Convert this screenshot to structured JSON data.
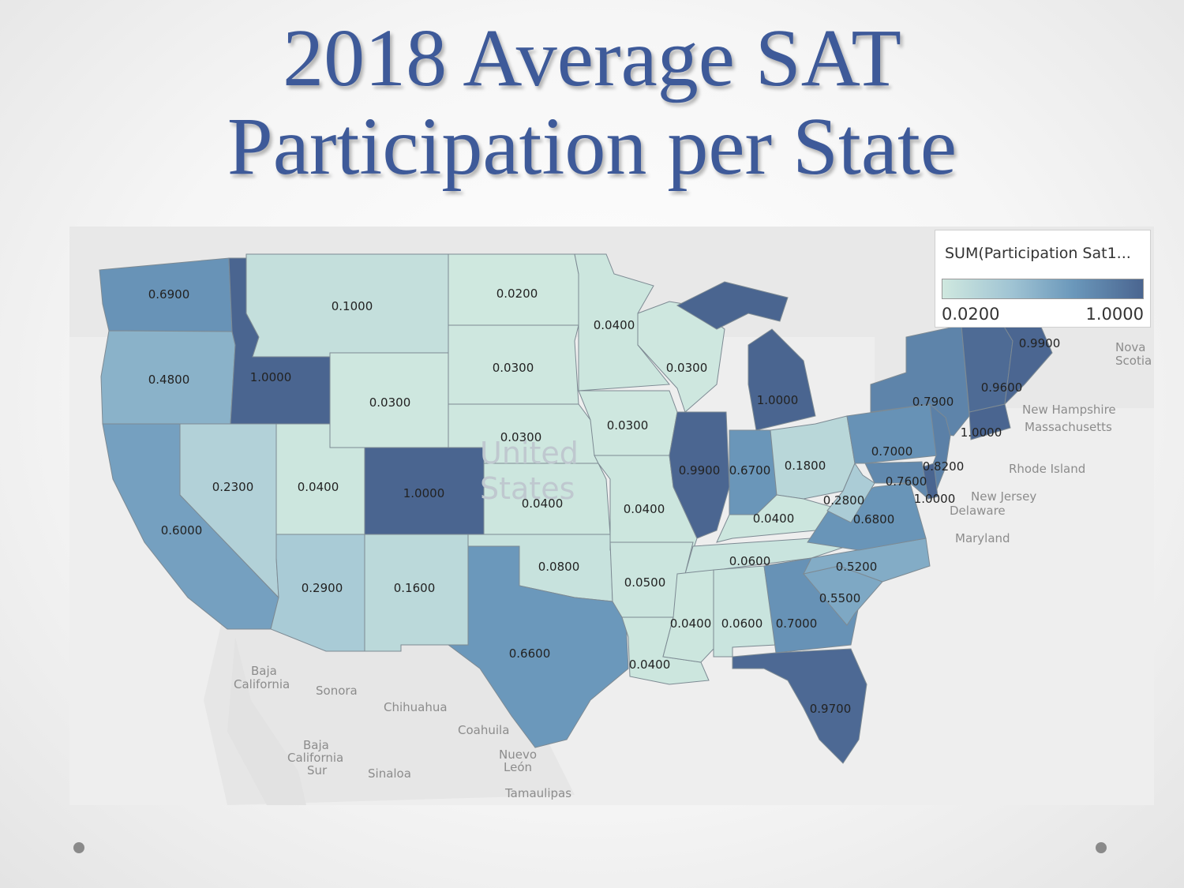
{
  "slide": {
    "title_line1": "2018 Average SAT",
    "title_line2": "Participation per State"
  },
  "legend": {
    "title": "SUM(Participation Sat1...",
    "min_label": "0.0200",
    "max_label": "1.0000",
    "color_low": "#cfe8df",
    "color_high": "#4a6590"
  },
  "map_labels": {
    "bg_usa_1": "United",
    "bg_usa_2": "States",
    "nova_1": "Nova",
    "nova_2": "Scotia",
    "new_hampshire": "New Hampshire",
    "massachusetts": "Massachusetts",
    "rhode_island": "Rhode Island",
    "new_jersey": "New Jersey",
    "delaware": "Delaware",
    "maryland": "Maryland",
    "baja_california_1": "Baja",
    "baja_california_2": "California",
    "sonora": "Sonora",
    "chihuahua": "Chihuahua",
    "coahuila": "Coahuila",
    "baja_sur_1": "Baja",
    "baja_sur_2": "California",
    "baja_sur_3": "Sur",
    "nuevo_1": "Nuevo",
    "nuevo_2": "León",
    "sinaloa": "Sinaloa",
    "tamaulipas": "Tamaulipas"
  },
  "chart_data": {
    "type": "choropleth",
    "title": "2018 Average SAT Participation per State",
    "measure": "SUM(Participation Sat1...",
    "color_range": [
      0.02,
      1.0
    ],
    "states": [
      {
        "state": "WA",
        "value": 0.69,
        "label": "0.6900"
      },
      {
        "state": "OR",
        "value": 0.48,
        "label": "0.4800"
      },
      {
        "state": "CA",
        "value": 0.6,
        "label": "0.6000"
      },
      {
        "state": "ID",
        "value": 1.0,
        "label": "1.0000"
      },
      {
        "state": "NV",
        "value": 0.23,
        "label": "0.2300"
      },
      {
        "state": "MT",
        "value": 0.1,
        "label": "0.1000"
      },
      {
        "state": "WY",
        "value": 0.03,
        "label": "0.0300"
      },
      {
        "state": "UT",
        "value": 0.04,
        "label": "0.0400"
      },
      {
        "state": "AZ",
        "value": 0.29,
        "label": "0.2900"
      },
      {
        "state": "CO",
        "value": 1.0,
        "label": "1.0000"
      },
      {
        "state": "NM",
        "value": 0.16,
        "label": "0.1600"
      },
      {
        "state": "ND",
        "value": 0.02,
        "label": "0.0200"
      },
      {
        "state": "SD",
        "value": 0.03,
        "label": "0.0300"
      },
      {
        "state": "NE",
        "value": 0.03,
        "label": "0.0300"
      },
      {
        "state": "KS",
        "value": 0.04,
        "label": "0.0400"
      },
      {
        "state": "OK",
        "value": 0.08,
        "label": "0.0800"
      },
      {
        "state": "TX",
        "value": 0.66,
        "label": "0.6600"
      },
      {
        "state": "MN",
        "value": 0.04,
        "label": "0.0400"
      },
      {
        "state": "IA",
        "value": 0.03,
        "label": "0.0300"
      },
      {
        "state": "MO",
        "value": 0.04,
        "label": "0.0400"
      },
      {
        "state": "AR",
        "value": 0.05,
        "label": "0.0500"
      },
      {
        "state": "LA",
        "value": 0.04,
        "label": "0.0400"
      },
      {
        "state": "WI",
        "value": 0.03,
        "label": "0.0300"
      },
      {
        "state": "IL",
        "value": 0.99,
        "label": "0.9900"
      },
      {
        "state": "MI",
        "value": 1.0,
        "label": "1.0000"
      },
      {
        "state": "IN",
        "value": 0.67,
        "label": "0.6700"
      },
      {
        "state": "OH",
        "value": 0.18,
        "label": "0.1800"
      },
      {
        "state": "KY",
        "value": 0.04,
        "label": "0.0400"
      },
      {
        "state": "TN",
        "value": 0.06,
        "label": "0.0600"
      },
      {
        "state": "MS",
        "value": 0.04,
        "label": "0.0400"
      },
      {
        "state": "AL",
        "value": 0.06,
        "label": "0.0600"
      },
      {
        "state": "GA",
        "value": 0.7,
        "label": "0.7000"
      },
      {
        "state": "FL",
        "value": 0.97,
        "label": "0.9700"
      },
      {
        "state": "SC",
        "value": 0.55,
        "label": "0.5500"
      },
      {
        "state": "NC",
        "value": 0.52,
        "label": "0.5200"
      },
      {
        "state": "VA",
        "value": 0.68,
        "label": "0.6800"
      },
      {
        "state": "WV",
        "value": 0.28,
        "label": "0.2800"
      },
      {
        "state": "PA",
        "value": 0.7,
        "label": "0.7000"
      },
      {
        "state": "NY",
        "value": 0.79,
        "label": "0.7900"
      },
      {
        "state": "NJ",
        "value": 0.82,
        "label": "0.8200"
      },
      {
        "state": "DE",
        "value": 1.0,
        "label": "1.0000"
      },
      {
        "state": "MD",
        "value": 0.76,
        "label": "0.7600"
      },
      {
        "state": "CT",
        "value": 1.0,
        "label": "1.0000"
      },
      {
        "state": "VT_NH",
        "value": 0.96,
        "label": "0.9600"
      },
      {
        "state": "ME",
        "value": 0.99,
        "label": "0.9900"
      }
    ]
  }
}
